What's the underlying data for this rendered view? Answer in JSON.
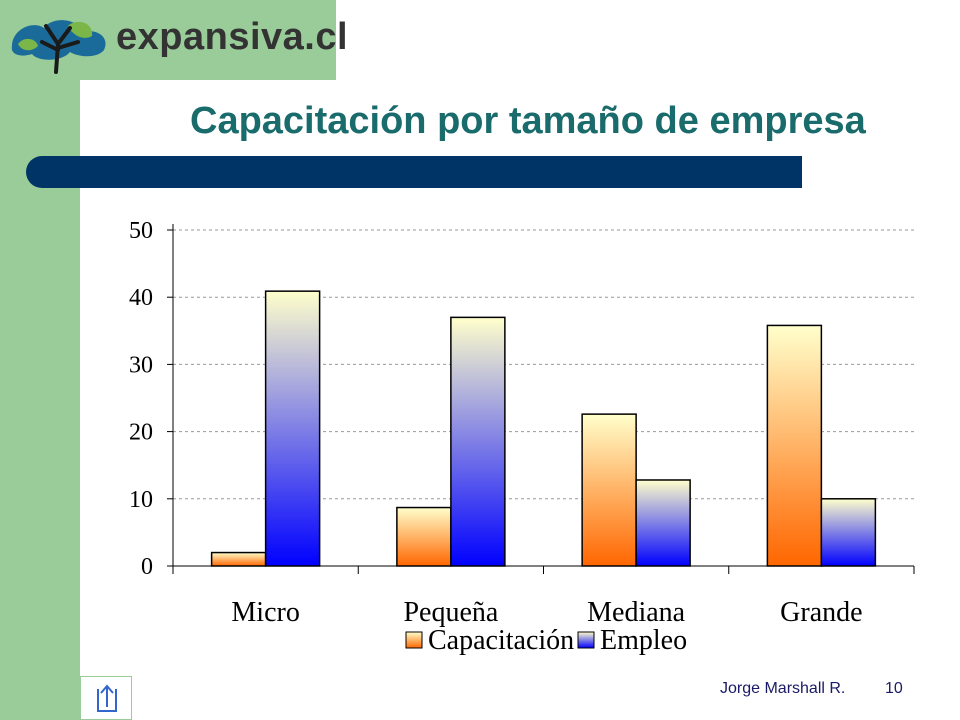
{
  "logo": {
    "text": "expansiva.cl",
    "icon": "tree-icon"
  },
  "slide": {
    "title": "Capacitación por tamaño de empresa",
    "author": "Jorge Marshall R.",
    "page_number": "10"
  },
  "navigation": {
    "return_icon": "return-arrow-icon"
  },
  "colors": {
    "background_green": "#99cc99",
    "title_text": "#1a6b6b",
    "title_bar": "#003366",
    "capacitacion_top": "#ffffcc",
    "capacitacion_bottom": "#ff6600",
    "empleo_top": "#ffffcc",
    "empleo_bottom": "#0000ff"
  },
  "chart_data": {
    "type": "bar",
    "categories": [
      "Micro",
      "Pequeña",
      "Mediana",
      "Grande"
    ],
    "series": [
      {
        "name": "Capacitación",
        "values": [
          2,
          8.7,
          22.6,
          35.8
        ]
      },
      {
        "name": "Empleo",
        "values": [
          40.9,
          37,
          12.8,
          10
        ]
      }
    ],
    "ylim": [
      0,
      50
    ],
    "yticks": [
      0,
      10,
      20,
      30,
      40,
      50
    ],
    "grid": true,
    "legend_position": "bottom"
  }
}
